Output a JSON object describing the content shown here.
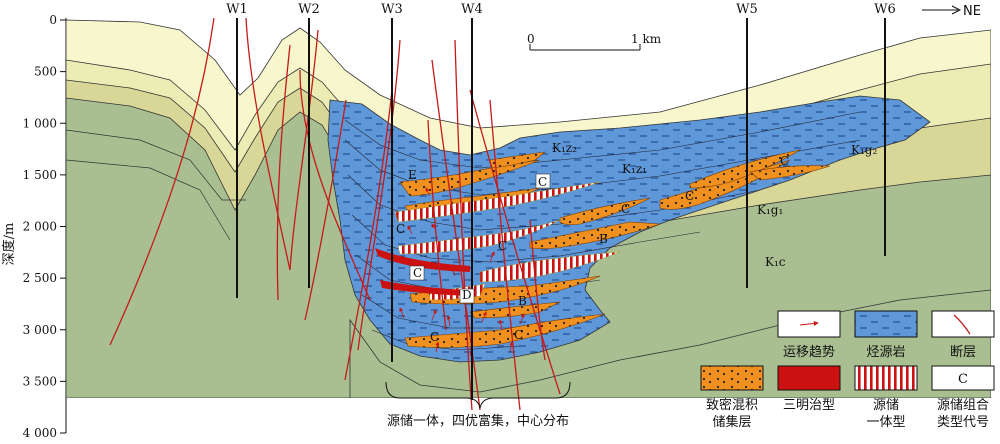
{
  "y_axis": {
    "title": "深度/m",
    "ticks": [
      "0",
      "500",
      "1 000",
      "1 500",
      "2 000",
      "2 500",
      "3 000",
      "3 500",
      "4 000"
    ],
    "range": [
      0,
      4000
    ]
  },
  "wells": [
    "W1",
    "W2",
    "W3",
    "W4",
    "W5",
    "W6"
  ],
  "direction": "NE",
  "scale_bar": {
    "start": "0",
    "end": "1 km"
  },
  "formations": [
    "K₁z₂",
    "K₁z₁",
    "K₁g₂",
    "K₁g₁",
    "K₁c"
  ],
  "reservoir_codes": [
    "E",
    "C",
    "C",
    "C",
    "C",
    "C",
    "C",
    "C",
    "C",
    "B",
    "B",
    "D",
    "C"
  ],
  "bottom_note": "源储一体，四优富集，中心分布",
  "legend": [
    {
      "key": "arrow",
      "label_lines": [
        "运移趋势"
      ]
    },
    {
      "key": "source",
      "label_lines": [
        "烃源岩"
      ]
    },
    {
      "key": "fault",
      "label_lines": [
        "断层"
      ]
    },
    {
      "key": "reservoir",
      "label_lines": [
        "致密混积",
        "储集层"
      ]
    },
    {
      "key": "sandwich",
      "label_lines": [
        "三明治型"
      ]
    },
    {
      "key": "integrated",
      "label_lines": [
        "源储",
        "一体型"
      ]
    },
    {
      "key": "code",
      "symbol": "C",
      "label_lines": [
        "源储组合",
        "类型代号"
      ]
    }
  ],
  "colors": {
    "source_rock": "#5f98d8",
    "reservoir": "#f0901f",
    "sandwich": "#cc1111",
    "fault": "#c41a1a",
    "k1c": "#a9bf91",
    "k1g1": "#d8d798",
    "k1g2": "#ecedb4",
    "top": "#f7f6cc"
  }
}
